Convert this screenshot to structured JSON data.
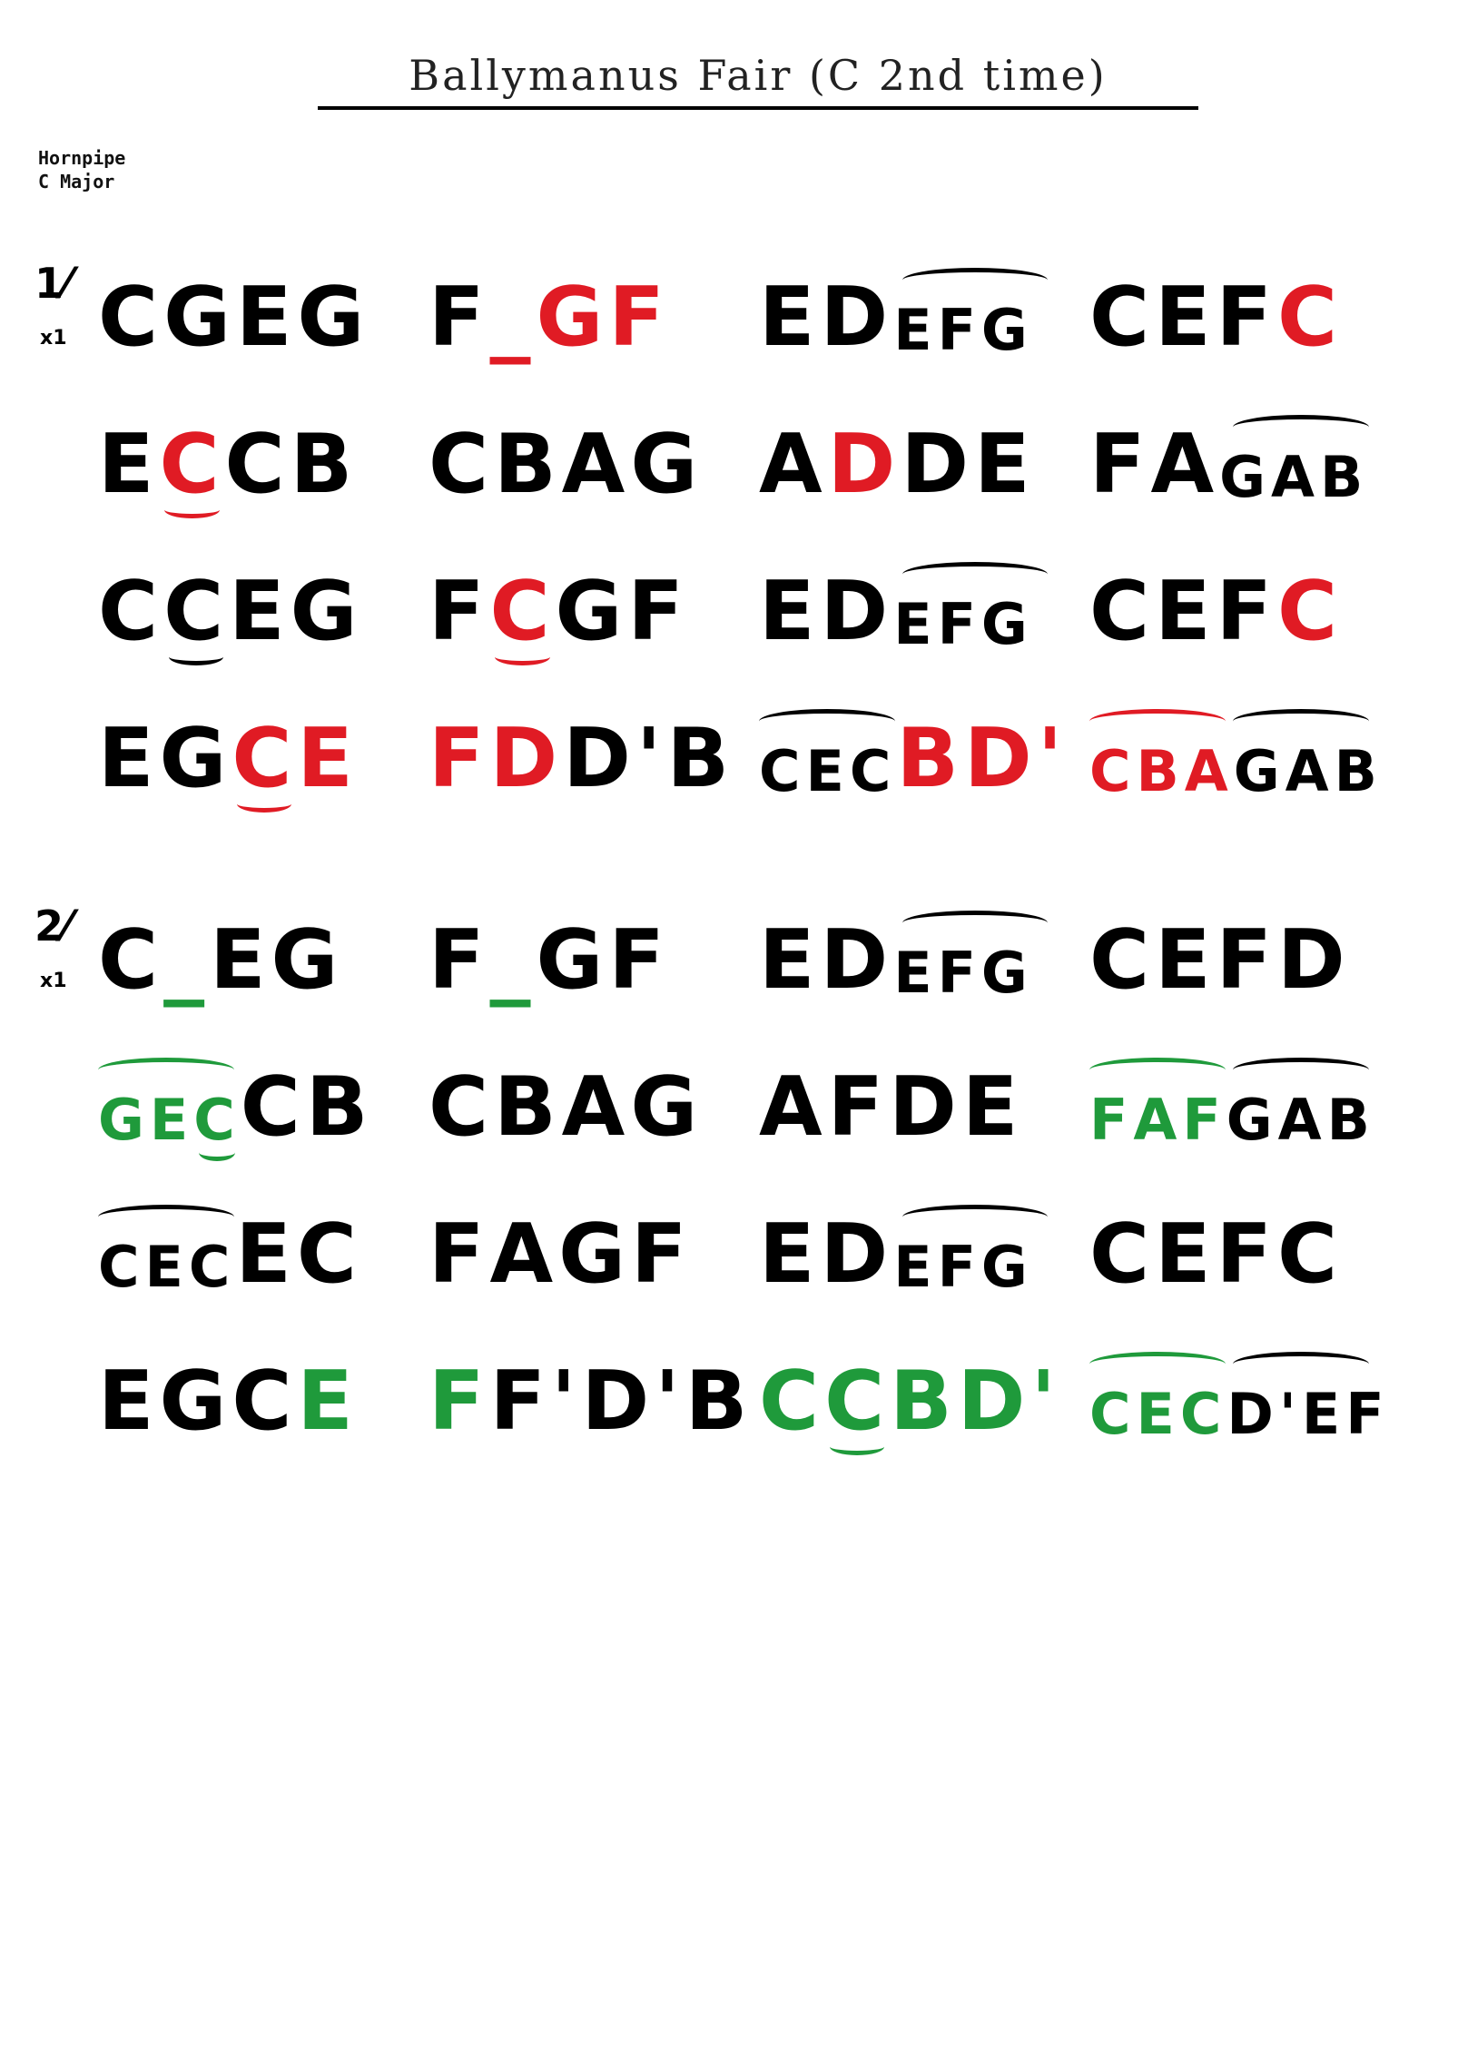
{
  "title": "Ballymanus Fair (C 2nd time)",
  "meta": {
    "type": "Hornpipe",
    "key": "C Major"
  },
  "parts": [
    {
      "number": "1",
      "repeat": "x1",
      "rows": [
        [
          "CGEG",
          "F_GF",
          "EDEFG",
          "CEFC"
        ],
        [
          "ECCB",
          "CBAG",
          "ADDE",
          "FAGAB"
        ],
        [
          "CCEG",
          "FCGF",
          "EDEFG",
          "CEFC"
        ],
        [
          "EGCE",
          "FDD'B",
          "CECBD'",
          "CBAGAB"
        ]
      ]
    },
    {
      "number": "2",
      "repeat": "x1",
      "rows": [
        [
          "C_EG",
          "F_GF",
          "EDEFG",
          "CEFD"
        ],
        [
          "GECCB",
          "CBAG",
          "AFDE",
          "FAFGAB"
        ],
        [
          "CECEC",
          "FAGF",
          "EDEFG",
          "CEFC"
        ],
        [
          "EGCE",
          "FF'D'B",
          "CCBD'",
          "CECD'EF"
        ]
      ]
    }
  ],
  "colors": {
    "red": "#e01b24",
    "green": "#1f9a3b",
    "ink": "#000000"
  }
}
